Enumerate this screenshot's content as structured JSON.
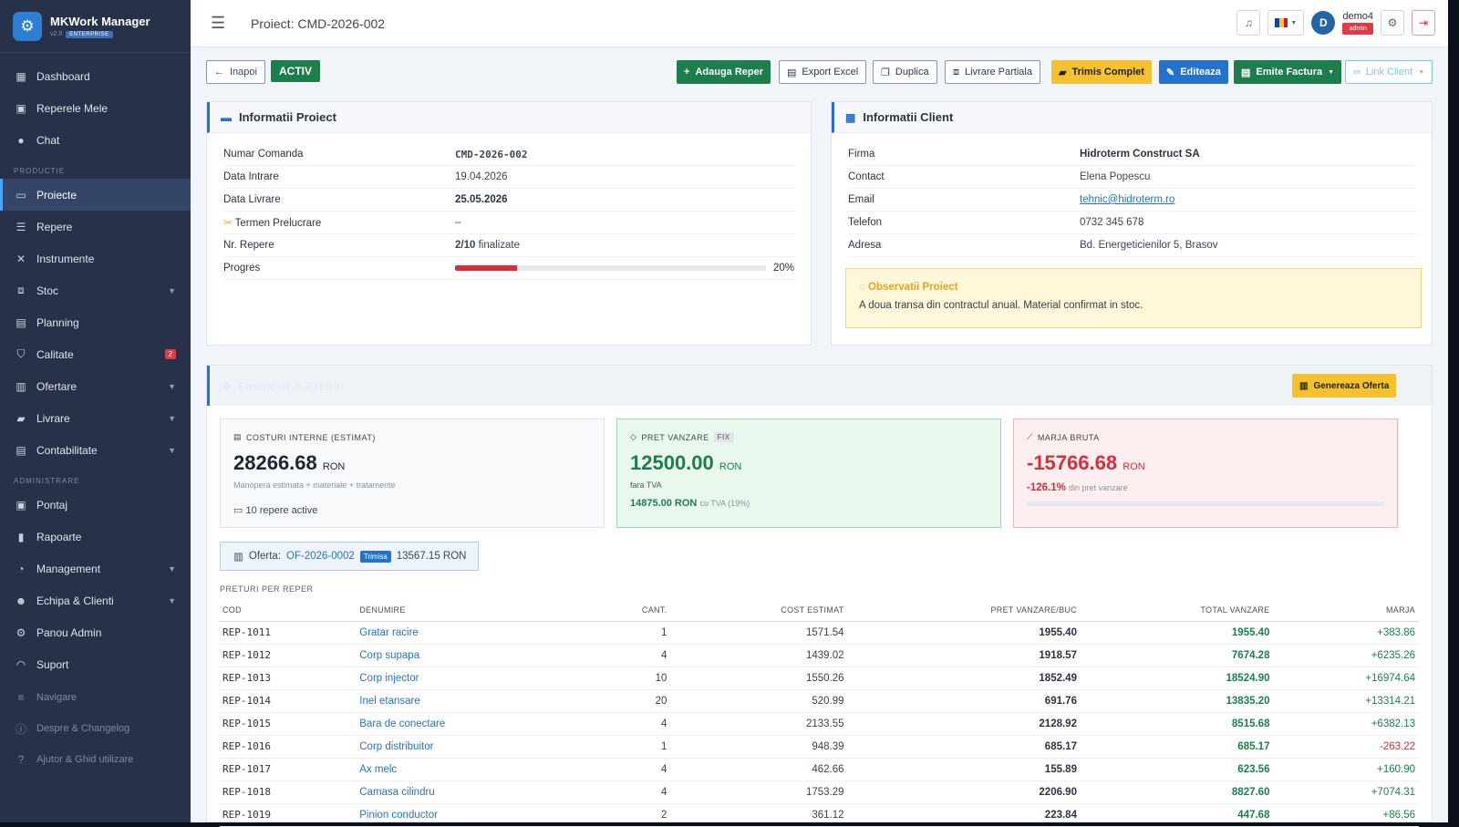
{
  "app": {
    "name": "MKWork Manager",
    "version": "v2.0",
    "edition": "ENTERPRISE"
  },
  "sidebar": {
    "items_main": [
      {
        "label": "Dashboard",
        "icon": "dashboard-icon"
      },
      {
        "label": "Reperele Mele",
        "icon": "id-card-icon"
      },
      {
        "label": "Chat",
        "icon": "chat-icon"
      }
    ],
    "section_productie": "PRODUCTIE",
    "items_productie": [
      {
        "label": "Proiecte",
        "icon": "folder-icon"
      },
      {
        "label": "Repere",
        "icon": "list-icon"
      },
      {
        "label": "Instrumente",
        "icon": "tools-icon"
      },
      {
        "label": "Stoc",
        "icon": "boxes-icon"
      },
      {
        "label": "Planning",
        "icon": "calendar-icon"
      },
      {
        "label": "Calitate",
        "icon": "shield-icon",
        "badge": "2"
      },
      {
        "label": "Ofertare",
        "icon": "document-icon"
      },
      {
        "label": "Livrare",
        "icon": "truck-icon"
      },
      {
        "label": "Contabilitate",
        "icon": "ledger-icon"
      }
    ],
    "section_admin": "ADMINISTRARE",
    "items_admin": [
      {
        "label": "Pontaj",
        "icon": "calendar-check-icon"
      },
      {
        "label": "Rapoarte",
        "icon": "bar-chart-icon"
      },
      {
        "label": "Management",
        "icon": "gauge-icon"
      },
      {
        "label": "Echipa & Clienti",
        "icon": "users-icon"
      },
      {
        "label": "Panou Admin",
        "icon": "gear-icon"
      },
      {
        "label": "Suport",
        "icon": "headset-icon"
      }
    ],
    "items_footer": [
      {
        "label": "Navigare",
        "icon": "sliders-icon"
      },
      {
        "label": "Despre & Changelog",
        "icon": "info-icon"
      },
      {
        "label": "Ajutor & Ghid utilizare",
        "icon": "question-icon"
      }
    ]
  },
  "topbar": {
    "title": "Proiect: CMD-2026-002",
    "user": {
      "initial": "D",
      "name": "demo4",
      "role": "admin"
    }
  },
  "toolbar": {
    "back": "Inapoi",
    "status": "ACTIV",
    "add_reper": "Adauga Reper",
    "export_excel": "Export Excel",
    "duplica": "Duplica",
    "livrare_partiala": "Livrare Partiala",
    "trimis_complet": "Trimis Complet",
    "editeaza": "Editeaza",
    "emite_factura": "Emite Factura",
    "link_client": "Link Client"
  },
  "project_info": {
    "title": "Informatii Proiect",
    "rows": [
      {
        "k": "Numar Comanda",
        "v": "CMD-2026-002"
      },
      {
        "k": "Data Intrare",
        "v": "19.04.2026"
      },
      {
        "k": "Data Livrare",
        "v": "25.05.2026"
      },
      {
        "k": "Termen Prelucrare",
        "v": "–"
      },
      {
        "k": "Nr. Repere",
        "v": "2/10",
        "v2": "finalizate"
      },
      {
        "k": "Progres",
        "v": "20%"
      }
    ],
    "progress": 0.2
  },
  "client_info": {
    "title": "Informatii Client",
    "rows": [
      {
        "k": "Firma",
        "v": "Hidroterm Construct SA"
      },
      {
        "k": "Contact",
        "v": "Elena Popescu"
      },
      {
        "k": "Email",
        "v": "tehnic@hidroterm.ro"
      },
      {
        "k": "Telefon",
        "v": "0732 345 678"
      },
      {
        "k": "Adresa",
        "v": "Bd. Energeticienilor 5, Brasov"
      }
    ],
    "obs_title": "Observatii Proiect",
    "obs_text": "A doua transa din contractul anual. Material confirmat in stoc."
  },
  "financial": {
    "title": "Financiar & Preturi",
    "generate_offer": "Genereaza Oferta",
    "costs": {
      "label": "COSTURI INTERNE (ESTIMAT)",
      "value": "28266.68",
      "currency": "RON",
      "sub": "Manopera estimata + materiale + tratamente",
      "repere": "10 repere active"
    },
    "sale": {
      "label": "PRET VANZARE",
      "tag": "FIX",
      "value": "12500.00",
      "currency": "RON",
      "sub": "fara TVA",
      "with_vat": "14875.00 RON",
      "with_vat_note": "cu TVA (19%)"
    },
    "margin": {
      "label": "MARJA BRUTA",
      "value": "-15766.68",
      "currency": "RON",
      "pct": "-126.1%",
      "pct_note": "din pret vanzare"
    },
    "offer": {
      "prefix": "Oferta:",
      "id": "OF-2026-0002",
      "status": "Trimisa",
      "amount": "13567.15 RON"
    },
    "table_title": "PRETURI PER REPER",
    "columns": [
      "COD",
      "DENUMIRE",
      "CANT.",
      "COST ESTIMAT",
      "PRET VANZARE/BUC",
      "TOTAL VANZARE",
      "MARJA"
    ],
    "rows": [
      [
        "REP-1011",
        "Gratar racire",
        "1",
        "1571.54",
        "1955.40",
        "1955.40",
        "+383.86"
      ],
      [
        "REP-1012",
        "Corp supapa",
        "4",
        "1439.02",
        "1918.57",
        "7674.28",
        "+6235.26"
      ],
      [
        "REP-1013",
        "Corp injector",
        "10",
        "1550.26",
        "1852.49",
        "18524.90",
        "+16974.64"
      ],
      [
        "REP-1014",
        "Inel etansare",
        "20",
        "520.99",
        "691.76",
        "13835.20",
        "+13314.21"
      ],
      [
        "REP-1015",
        "Bara de conectare",
        "4",
        "2133.55",
        "2128.92",
        "8515.68",
        "+6382.13"
      ],
      [
        "REP-1016",
        "Corp distribuitor",
        "1",
        "948.39",
        "685.17",
        "685.17",
        "-263.22"
      ],
      [
        "REP-1017",
        "Ax melc",
        "4",
        "462.66",
        "155.89",
        "623.56",
        "+160.90"
      ],
      [
        "REP-1018",
        "Camasa cilindru",
        "4",
        "1753.29",
        "2206.90",
        "8827.60",
        "+7074.31"
      ],
      [
        "REP-1019",
        "Pinion conductor",
        "2",
        "361.12",
        "223.84",
        "447.68",
        "+86.56"
      ]
    ]
  }
}
